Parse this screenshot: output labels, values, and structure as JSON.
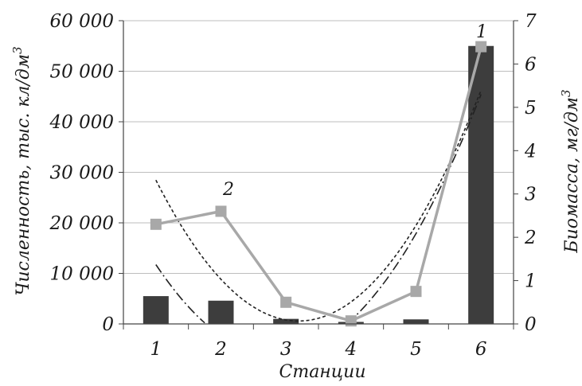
{
  "chart_data": {
    "type": "bar",
    "xlabel": "Станции",
    "ylabel": "Численность, тыс. кл/дм",
    "ylabel_sup": "3",
    "y2label": "Биомасса, мг/дм",
    "y2label_sup": "3",
    "categories": [
      "1",
      "2",
      "3",
      "4",
      "5",
      "6"
    ],
    "ylim": [
      0,
      60000
    ],
    "y2lim": [
      0,
      7
    ],
    "yticks": [
      "0",
      "10 000",
      "20 000",
      "30 000",
      "40 000",
      "50 000",
      "60 000"
    ],
    "y2ticks": [
      "0",
      "1",
      "2",
      "3",
      "4",
      "5",
      "6",
      "7"
    ],
    "grid": true,
    "series": [
      {
        "name": "1",
        "kind": "bar",
        "axis": "left",
        "color": "#3d3d3d",
        "values": [
          5500,
          4600,
          1000,
          400,
          900,
          55000
        ]
      },
      {
        "name": "2",
        "kind": "line",
        "axis": "right",
        "marker": "square",
        "color": "#a8a8a8",
        "values": [
          2.3,
          2.6,
          0.5,
          0.07,
          0.75,
          6.4
        ]
      }
    ],
    "trendlines": [
      {
        "style": "dashed",
        "type": "poly2",
        "axis": "right",
        "color": "#222222"
      },
      {
        "style": "dash-dot",
        "type": "poly2",
        "axis": "left",
        "color": "#222222"
      }
    ]
  }
}
